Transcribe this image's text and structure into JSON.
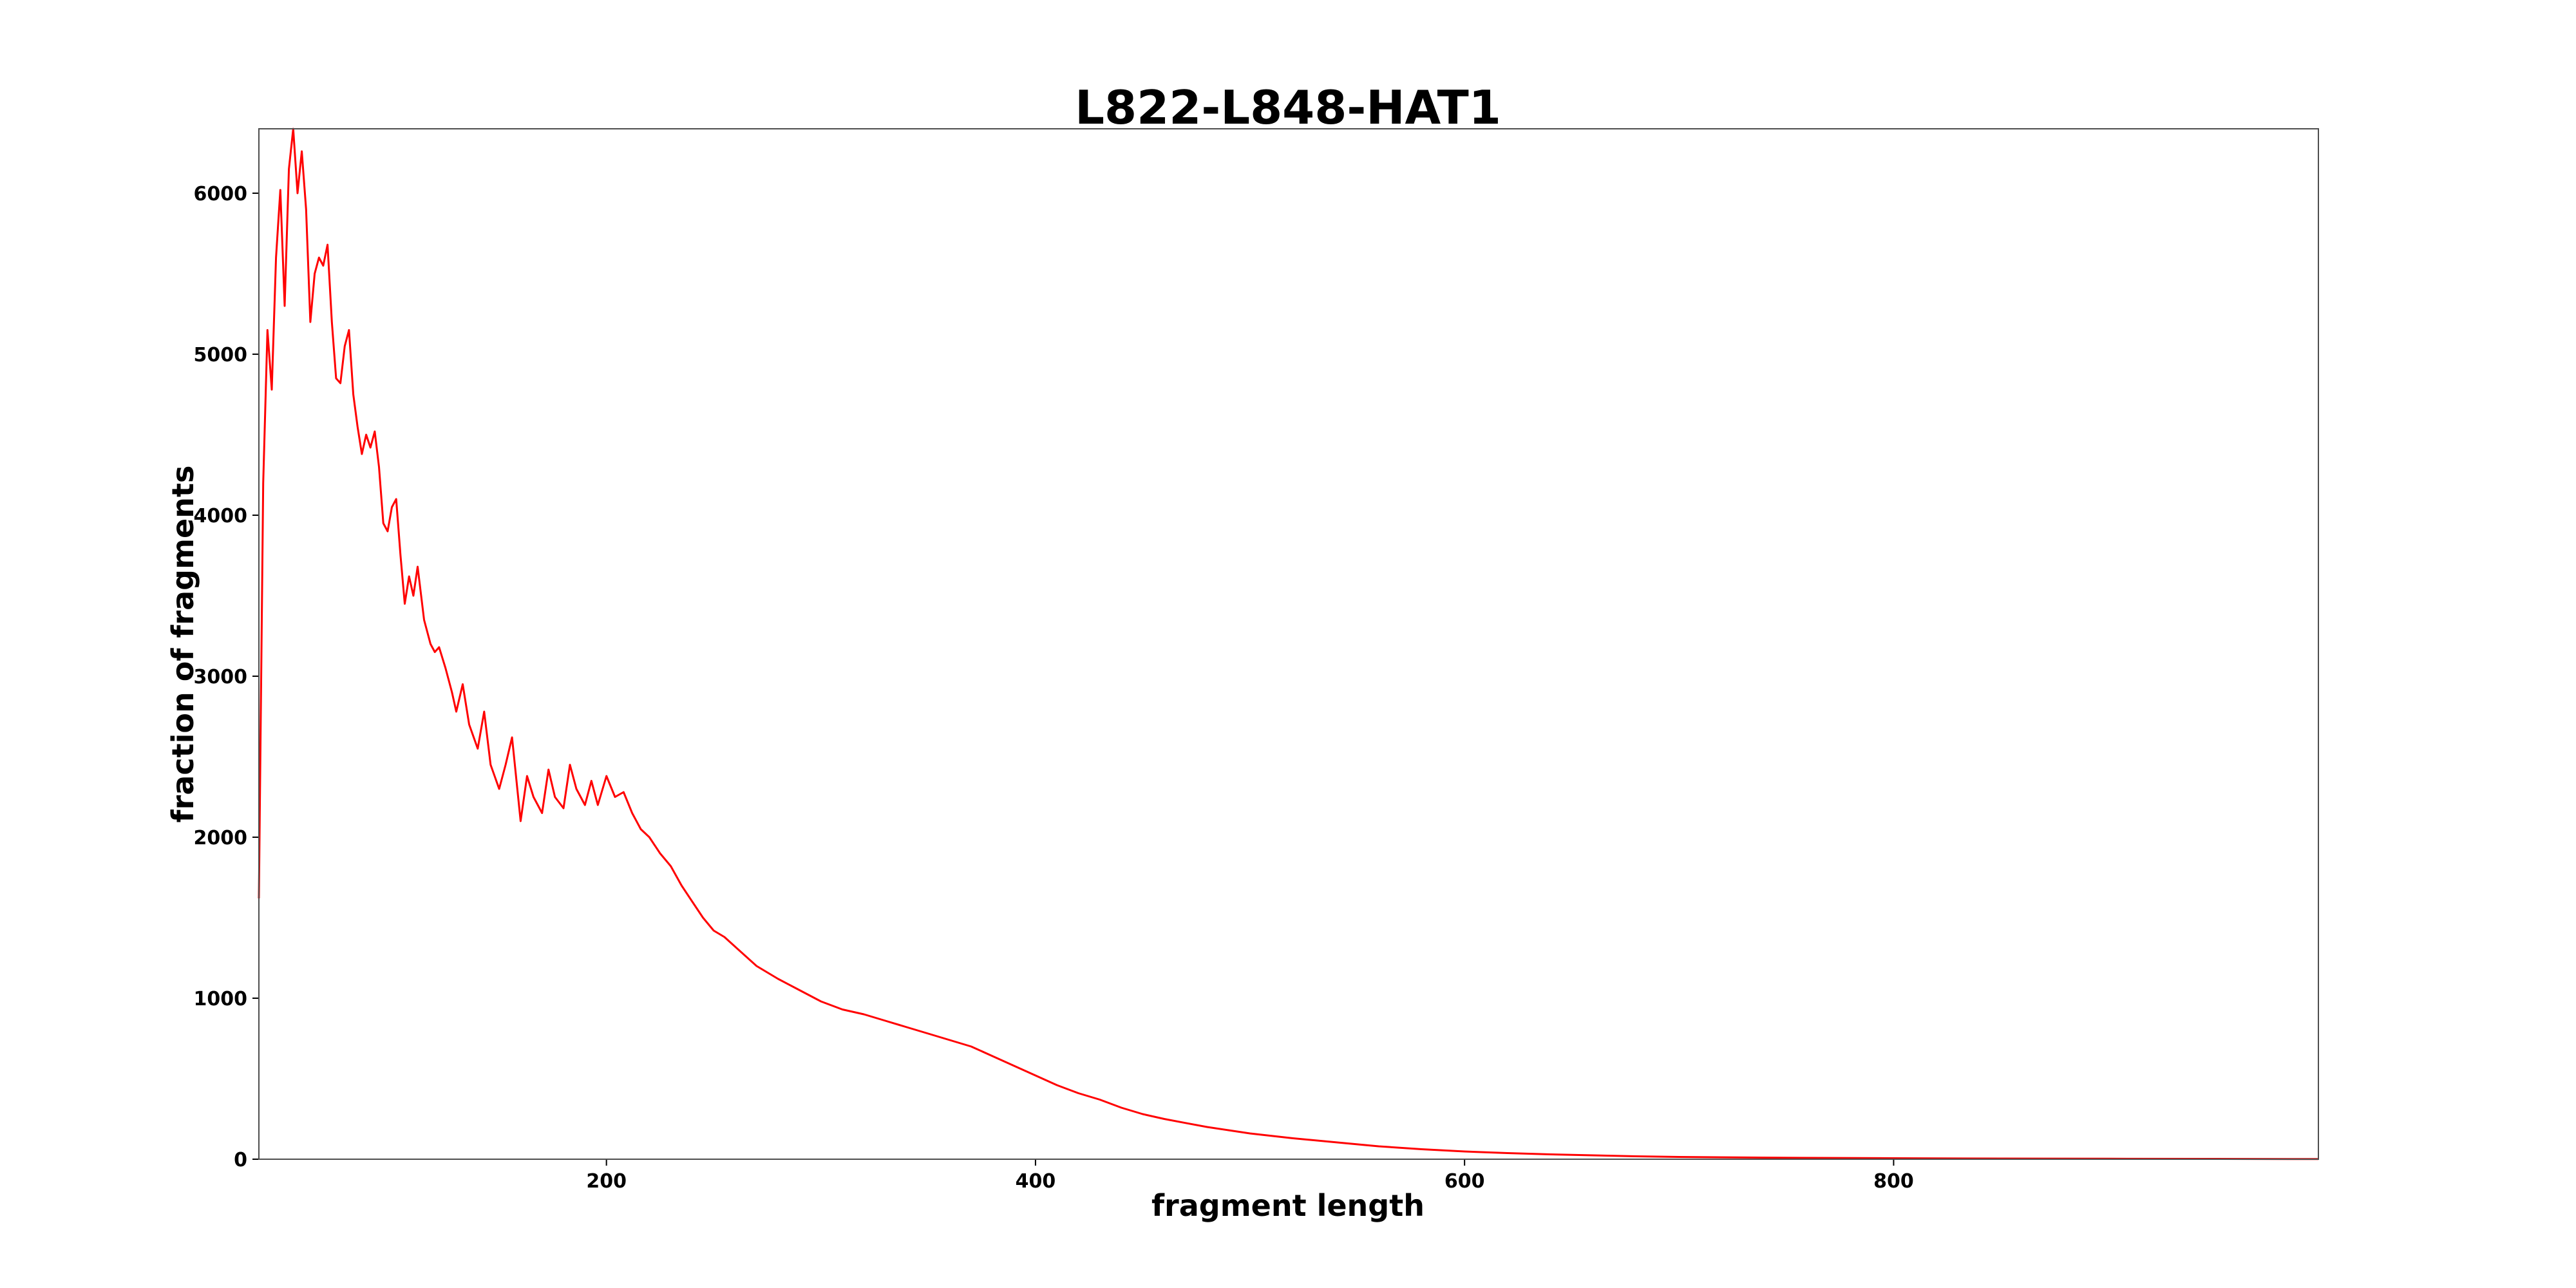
{
  "chart_data": {
    "type": "line",
    "title": "L822-L848-HAT1",
    "xlabel": "fragment length",
    "ylabel": "fraction of fragments",
    "xlim": [
      38,
      998
    ],
    "ylim": [
      0,
      6400
    ],
    "xticks": [
      200,
      400,
      600,
      800
    ],
    "yticks": [
      0,
      1000,
      2000,
      3000,
      4000,
      5000,
      6000
    ],
    "grid": false,
    "series": [
      {
        "color": "#ff0000",
        "x": [
          38,
          40,
          42,
          44,
          46,
          48,
          50,
          52,
          54,
          56,
          58,
          60,
          62,
          64,
          66,
          68,
          70,
          72,
          74,
          76,
          78,
          80,
          82,
          84,
          86,
          88,
          90,
          92,
          94,
          96,
          98,
          100,
          102,
          104,
          106,
          108,
          110,
          112,
          115,
          118,
          120,
          122,
          125,
          128,
          130,
          133,
          136,
          140,
          143,
          146,
          150,
          153,
          156,
          160,
          163,
          166,
          170,
          173,
          176,
          180,
          183,
          186,
          190,
          193,
          196,
          200,
          204,
          208,
          212,
          216,
          220,
          225,
          230,
          235,
          240,
          245,
          250,
          255,
          260,
          270,
          280,
          290,
          300,
          310,
          320,
          330,
          340,
          350,
          360,
          370,
          380,
          390,
          400,
          410,
          420,
          430,
          440,
          450,
          460,
          470,
          480,
          490,
          500,
          520,
          540,
          560,
          580,
          600,
          620,
          640,
          660,
          680,
          700,
          750,
          800,
          850,
          900,
          950,
          998
        ],
        "y": [
          1620,
          4200,
          5150,
          4780,
          5600,
          6020,
          5300,
          6150,
          6400,
          6000,
          6260,
          5900,
          5200,
          5500,
          5600,
          5550,
          5680,
          5200,
          4850,
          4820,
          5050,
          5150,
          4750,
          4550,
          4380,
          4500,
          4420,
          4520,
          4300,
          3950,
          3900,
          4050,
          4100,
          3750,
          3450,
          3620,
          3500,
          3680,
          3350,
          3200,
          3150,
          3180,
          3050,
          2900,
          2780,
          2950,
          2700,
          2550,
          2780,
          2450,
          2300,
          2450,
          2620,
          2100,
          2380,
          2250,
          2150,
          2420,
          2250,
          2180,
          2450,
          2300,
          2200,
          2350,
          2200,
          2380,
          2250,
          2280,
          2150,
          2050,
          2000,
          1900,
          1820,
          1700,
          1600,
          1500,
          1420,
          1380,
          1320,
          1200,
          1120,
          1050,
          980,
          930,
          900,
          860,
          820,
          780,
          740,
          700,
          640,
          580,
          520,
          460,
          410,
          370,
          320,
          280,
          250,
          225,
          200,
          180,
          160,
          130,
          105,
          80,
          62,
          48,
          38,
          30,
          24,
          18,
          14,
          9,
          6,
          4,
          3,
          2,
          1
        ]
      }
    ]
  }
}
